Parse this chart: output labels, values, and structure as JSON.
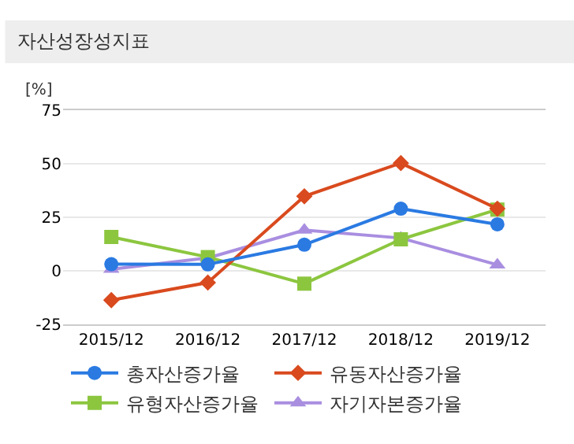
{
  "chart_data": {
    "type": "line",
    "title": "자산성장성지표",
    "ylabel": "[%]",
    "categories": [
      "2015/12",
      "2016/12",
      "2017/12",
      "2018/12",
      "2019/12"
    ],
    "series": [
      {
        "name": "총자산증가율",
        "color": "#2a7ae2",
        "marker": "circle",
        "values": [
          3.1,
          3,
          12.2,
          29,
          21.7
        ]
      },
      {
        "name": "유동자산증가율",
        "color": "#d94a1e",
        "marker": "diamond",
        "values": [
          -13.7,
          -5.5,
          34.8,
          50.3,
          29
        ]
      },
      {
        "name": "유형자산증가율",
        "color": "#8cc63f",
        "marker": "square",
        "values": [
          15.8,
          6.4,
          -6,
          14.7,
          28.6
        ]
      },
      {
        "name": "자기자본증가율",
        "color": "#a98ee0",
        "marker": "triangle",
        "values": [
          0.7,
          6,
          19,
          15.3,
          2.8
        ]
      }
    ],
    "ylim": [
      -25,
      75
    ],
    "yticks": [
      -25,
      0,
      25,
      50,
      75
    ],
    "grid": "y",
    "legend": "bottom"
  }
}
